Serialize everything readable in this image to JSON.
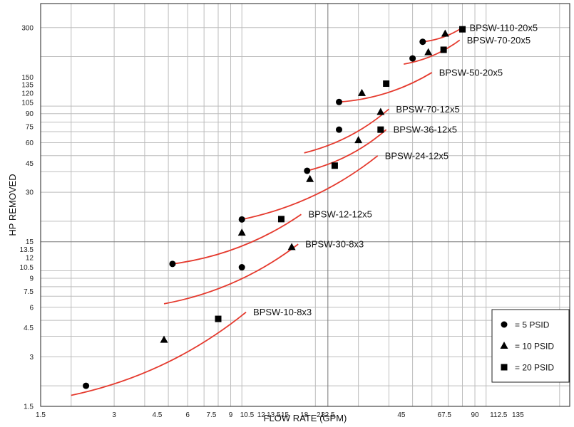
{
  "chart_data": {
    "type": "scatter",
    "title": "",
    "xlabel": "FLOW RATE (GPM)",
    "ylabel": "HP REMOVED",
    "xscale": "log",
    "yscale": "log",
    "xlim": [
      1.5,
      220
    ],
    "ylim": [
      1.5,
      420
    ],
    "grid": true,
    "legend_position": "bottom-right",
    "x_ticks": [
      {
        "v": 1.5,
        "label": "1.5"
      },
      {
        "v": 3,
        "label": "3"
      },
      {
        "v": 4.5,
        "label": "4.5"
      },
      {
        "v": 6,
        "label": "6"
      },
      {
        "v": 7.5,
        "label": "7.5"
      },
      {
        "v": 9,
        "label": "9"
      },
      {
        "v": 10.5,
        "label": "10.5"
      },
      {
        "v": 12,
        "label": "12"
      },
      {
        "v": 13.5,
        "label": "13.5"
      },
      {
        "v": 15,
        "label": "15"
      },
      {
        "v": 18,
        "label": "18"
      },
      {
        "v": 21,
        "label": "21"
      },
      {
        "v": 22.5,
        "label": "22.5"
      },
      {
        "v": 45,
        "label": "45"
      },
      {
        "v": 67.5,
        "label": "67.5"
      },
      {
        "v": 90,
        "label": "90"
      },
      {
        "v": 112.5,
        "label": "112.5"
      },
      {
        "v": 135,
        "label": "135"
      }
    ],
    "y_ticks": [
      {
        "v": 1.5,
        "label": "1.5"
      },
      {
        "v": 3,
        "label": "3"
      },
      {
        "v": 4.5,
        "label": "4.5"
      },
      {
        "v": 6,
        "label": "6"
      },
      {
        "v": 7.5,
        "label": "7.5"
      },
      {
        "v": 9,
        "label": "9"
      },
      {
        "v": 10.5,
        "label": "10.5"
      },
      {
        "v": 12,
        "label": "12"
      },
      {
        "v": 13.5,
        "label": "13.5"
      },
      {
        "v": 15,
        "label": "15"
      },
      {
        "v": 30,
        "label": "30"
      },
      {
        "v": 45,
        "label": "45"
      },
      {
        "v": 60,
        "label": "60"
      },
      {
        "v": 75,
        "label": "75"
      },
      {
        "v": 90,
        "label": "90"
      },
      {
        "v": 105,
        "label": "105"
      },
      {
        "v": 120,
        "label": "120"
      },
      {
        "v": 135,
        "label": "135"
      },
      {
        "v": 150,
        "label": "150"
      },
      {
        "v": 300,
        "label": "300"
      }
    ],
    "major_grid_x": [
      22.5
    ],
    "major_grid_y": [
      15
    ],
    "minor_grid_x": [
      2,
      3,
      4,
      5,
      6,
      7,
      8,
      9,
      10,
      20,
      30,
      40,
      50,
      60,
      70,
      80,
      90,
      100,
      200
    ],
    "minor_grid_y": [
      2,
      3,
      4,
      5,
      6,
      7,
      8,
      9,
      10,
      20,
      30,
      40,
      50,
      60,
      70,
      80,
      90,
      100,
      200,
      300
    ],
    "series": [
      {
        "name": "BPSW-10-8x3",
        "curve": [
          [
            2.0,
            1.75
          ],
          [
            10.4,
            5.6
          ]
        ],
        "points": [
          {
            "x": 2.3,
            "y": 2.0,
            "marker": "circle"
          },
          {
            "x": 4.8,
            "y": 3.8,
            "marker": "triangle"
          },
          {
            "x": 8.0,
            "y": 5.1,
            "marker": "square"
          }
        ]
      },
      {
        "name": "BPSW-30-8x3",
        "curve": [
          [
            4.8,
            6.3
          ],
          [
            17.0,
            14.5
          ]
        ],
        "points": [
          {
            "x": 10.0,
            "y": 10.5,
            "marker": "circle"
          },
          {
            "x": 16.0,
            "y": 13.9,
            "marker": "triangle"
          }
        ]
      },
      {
        "name": "BPSW-12-12x5",
        "curve": [
          [
            5.2,
            11.0
          ],
          [
            17.5,
            22.0
          ]
        ],
        "points": [
          {
            "x": 5.2,
            "y": 11.0,
            "marker": "circle"
          },
          {
            "x": 10.0,
            "y": 17.0,
            "marker": "triangle"
          },
          {
            "x": 14.5,
            "y": 20.6,
            "marker": "square"
          }
        ]
      },
      {
        "name": "BPSW-24-12x5",
        "curve": [
          [
            10.0,
            20.5
          ],
          [
            36.0,
            50.0
          ]
        ],
        "points": [
          {
            "x": 10.0,
            "y": 20.5,
            "marker": "circle"
          },
          {
            "x": 19.0,
            "y": 36.0,
            "marker": "triangle"
          },
          {
            "x": 24.0,
            "y": 43.5,
            "marker": "square"
          }
        ]
      },
      {
        "name": "BPSW-36-12x5",
        "curve": [
          [
            18.5,
            40.5
          ],
          [
            39.0,
            72.0
          ]
        ],
        "points": [
          {
            "x": 18.5,
            "y": 40.5,
            "marker": "circle"
          },
          {
            "x": 30.0,
            "y": 62.0,
            "marker": "triangle"
          },
          {
            "x": 37.0,
            "y": 72.0,
            "marker": "square"
          }
        ]
      },
      {
        "name": "BPSW-70-12x5",
        "curve": [
          [
            18.0,
            52.0
          ],
          [
            40.0,
            96.0
          ]
        ],
        "points": [
          {
            "x": 25.0,
            "y": 72.0,
            "marker": "circle"
          },
          {
            "x": 37.0,
            "y": 92.0,
            "marker": "triangle"
          }
        ]
      },
      {
        "name": "BPSW-50-20x5",
        "curve": [
          [
            25.0,
            106.0
          ],
          [
            60.0,
            160.0
          ]
        ],
        "points": [
          {
            "x": 25.0,
            "y": 106.0,
            "marker": "circle"
          },
          {
            "x": 31.0,
            "y": 120.0,
            "marker": "triangle"
          },
          {
            "x": 39.0,
            "y": 137.0,
            "marker": "square"
          }
        ]
      },
      {
        "name": "BPSW-70-20x5",
        "curve": [
          [
            46.0,
            180.0
          ],
          [
            78.0,
            252.0
          ]
        ],
        "points": [
          {
            "x": 50.0,
            "y": 195.0,
            "marker": "circle"
          },
          {
            "x": 58.0,
            "y": 212.0,
            "marker": "triangle"
          },
          {
            "x": 67.0,
            "y": 220.0,
            "marker": "square"
          }
        ]
      },
      {
        "name": "BPSW-110-20x5",
        "curve": [
          [
            55.0,
            246.0
          ],
          [
            80.0,
            300.0
          ]
        ],
        "points": [
          {
            "x": 55.0,
            "y": 246.0,
            "marker": "circle"
          },
          {
            "x": 68.0,
            "y": 275.0,
            "marker": "triangle"
          },
          {
            "x": 80.0,
            "y": 293.0,
            "marker": "square"
          }
        ]
      }
    ],
    "legend": [
      {
        "marker": "circle",
        "label": "=   5 PSID"
      },
      {
        "marker": "triangle",
        "label": "= 10 PSID"
      },
      {
        "marker": "square",
        "label": "= 20 PSID"
      }
    ],
    "colors": {
      "curve": "#e53a2e",
      "marker": "#000000",
      "grid": "#bdbdbd",
      "major_grid": "#777777"
    }
  }
}
